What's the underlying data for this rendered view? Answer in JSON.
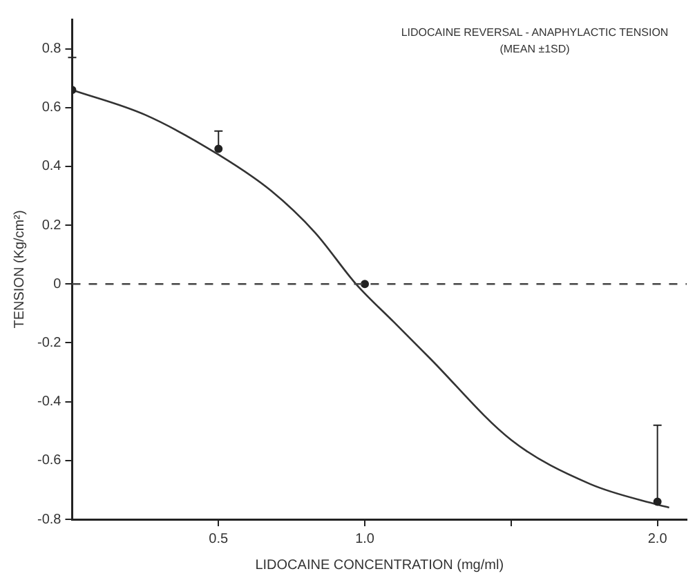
{
  "chart_data": {
    "type": "scatter",
    "title": "LIDOCAINE REVERSAL - ANAPHYLACTIC TENSION",
    "subtitle": "(MEAN ±1SD)",
    "xlabel": "LIDOCAINE CONCENTRATION (mg/ml)",
    "ylabel": "TENSION (Kg/cm²)",
    "xlim": [
      0,
      2.1
    ],
    "ylim": [
      -0.8,
      0.9
    ],
    "xticks": [
      {
        "value": 0.5,
        "label": "0.5"
      },
      {
        "value": 1,
        "label": "1.0"
      },
      {
        "value": 1.5,
        "label": null
      },
      {
        "value": 2,
        "label": "2.0"
      }
    ],
    "yticks": [
      {
        "value": -0.8,
        "label": "-0.8"
      },
      {
        "value": -0.6,
        "label": "-0.6"
      },
      {
        "value": -0.4,
        "label": "-0.4"
      },
      {
        "value": -0.2,
        "label": "-0.2"
      },
      0,
      0.2,
      0.4,
      0.6,
      0.8
    ],
    "grid": false,
    "legend": false,
    "marker": "circle",
    "series": [
      {
        "color": "#222222",
        "x": [
          0,
          0.5,
          1,
          2
        ],
        "values": [
          0.66,
          0.46,
          0,
          -0.74
        ],
        "errors": [
          [
            0.66,
            0.77
          ],
          [
            0.46,
            0.52
          ],
          null,
          [
            -0.74,
            -0.48
          ]
        ]
      },
      {
        "type": "line",
        "color": "#333333",
        "marker": "none",
        "line_style": "solid",
        "x": [
          0,
          0.25,
          0.5,
          0.68,
          0.83,
          0.97,
          1.1,
          1.22,
          1.5,
          1.77,
          2,
          2.04
        ],
        "values": [
          0.66,
          0.575,
          0.44,
          0.317,
          0.175,
          0,
          -0.13,
          -0.25,
          -0.53,
          -0.68,
          -0.75,
          -0.76
        ]
      }
    ],
    "ref_lines": [
      {
        "axis": "y",
        "value": 0,
        "color": "#444444",
        "line_style": "dashed"
      }
    ]
  }
}
